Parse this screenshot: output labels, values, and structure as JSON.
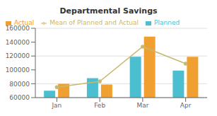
{
  "chart_data": {
    "type": "bar",
    "title": "Departmental Savings",
    "categories": [
      "Jan",
      "Feb",
      "Mar",
      "Apr"
    ],
    "series": [
      {
        "name": "Planned",
        "type": "bar",
        "color": "#4bbfcf",
        "values": [
          70000,
          88000,
          119000,
          99000
        ]
      },
      {
        "name": "Actual",
        "type": "bar",
        "color": "#f0a030",
        "values": [
          80000,
          79000,
          148000,
          119000
        ]
      },
      {
        "name": "Mean of Planned and Actual",
        "type": "line",
        "color": "#c8b870",
        "marker": "circle",
        "values": [
          75000,
          83500,
          133500,
          109000
        ]
      }
    ],
    "ylim": [
      60000,
      160000
    ],
    "yticks": [
      60000,
      80000,
      100000,
      120000,
      140000,
      160000
    ],
    "grid": true,
    "legend": "upper left"
  }
}
